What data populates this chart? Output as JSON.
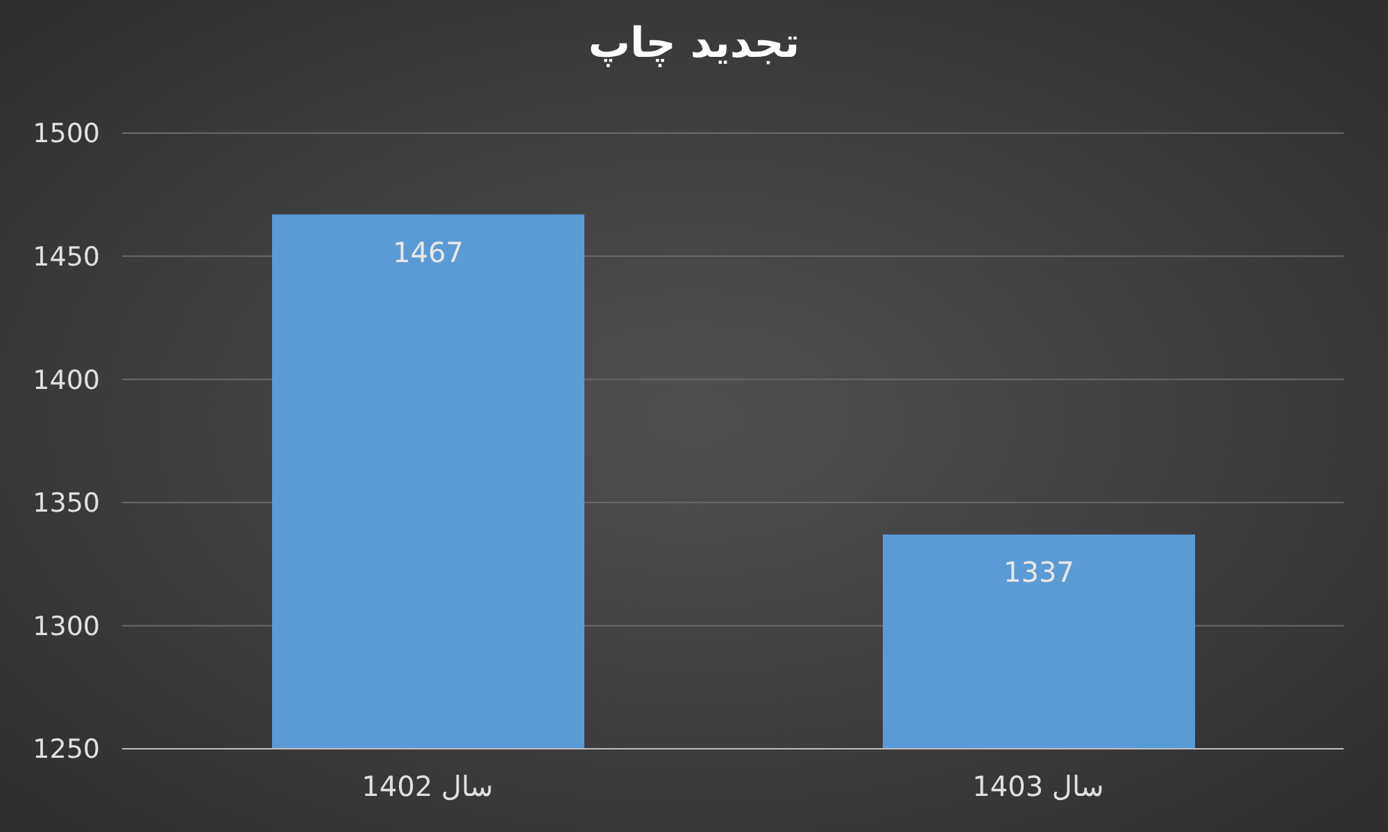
{
  "chart_data": {
    "type": "bar",
    "title": "تجدید چاپ",
    "categories": [
      "سال 1402",
      "سال 1403"
    ],
    "values": [
      1467,
      1337
    ],
    "color": "#5b9bd5",
    "ylim": [
      1250,
      1500
    ],
    "yticks": [
      1250,
      1300,
      1350,
      1400,
      1450,
      1500
    ],
    "grid": "y",
    "data_labels": true
  }
}
